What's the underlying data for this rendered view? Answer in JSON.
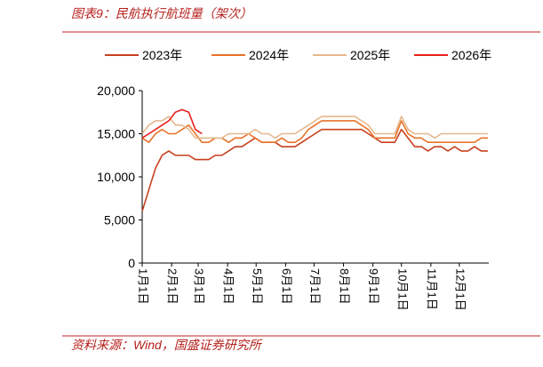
{
  "header": {
    "title": "图表9：民航执行航班量（架次）"
  },
  "chart_data": {
    "type": "line",
    "x": [
      0,
      7,
      14,
      21,
      28,
      35,
      42,
      49,
      56,
      63,
      70,
      77,
      84,
      91,
      98,
      105,
      112,
      119,
      126,
      133,
      140,
      147,
      154,
      161,
      168,
      175,
      182,
      189,
      196,
      203,
      210,
      217,
      224,
      231,
      238,
      245,
      252,
      259,
      266,
      273,
      280,
      287,
      294,
      301,
      308,
      315,
      322,
      329,
      336,
      343,
      350,
      357,
      364
    ],
    "xlim": [
      0,
      365
    ],
    "xticks": [
      {
        "value": 0,
        "label": "1月1日"
      },
      {
        "value": 31,
        "label": "2月1日"
      },
      {
        "value": 59,
        "label": "3月1日"
      },
      {
        "value": 90,
        "label": "4月1日"
      },
      {
        "value": 120,
        "label": "5月1日"
      },
      {
        "value": 151,
        "label": "6月1日"
      },
      {
        "value": 181,
        "label": "7月1日"
      },
      {
        "value": 212,
        "label": "8月1日"
      },
      {
        "value": 243,
        "label": "9月1日"
      },
      {
        "value": 273,
        "label": "10月1日"
      },
      {
        "value": 304,
        "label": "11月1日"
      },
      {
        "value": 334,
        "label": "12月1日"
      }
    ],
    "ylim": [
      0,
      20000
    ],
    "yticks": [
      0,
      {
        "value": 5000,
        "label": "5,000"
      },
      {
        "value": 10000,
        "label": "10,000"
      },
      {
        "value": 15000,
        "label": "15,000"
      },
      {
        "value": 20000,
        "label": "20,000"
      }
    ],
    "series": [
      {
        "name": "2023年",
        "color": "#C8401E",
        "values": [
          6000,
          8500,
          11000,
          12500,
          13000,
          12500,
          12500,
          12500,
          12000,
          12000,
          12000,
          12500,
          12500,
          13000,
          13500,
          13500,
          14000,
          14500,
          14000,
          14000,
          14000,
          13500,
          13500,
          13500,
          14000,
          14500,
          15000,
          15500,
          15500,
          15500,
          15500,
          15500,
          15500,
          15500,
          15000,
          14500,
          14000,
          14000,
          14000,
          15500,
          14500,
          13500,
          13500,
          13000,
          13500,
          13500,
          13000,
          13500,
          13000,
          13000,
          13500,
          13000,
          13000
        ]
      },
      {
        "name": "2024年",
        "color": "#E8732A",
        "values": [
          14500,
          14000,
          15000,
          15500,
          15000,
          15000,
          15500,
          16000,
          15000,
          14000,
          14000,
          14500,
          14500,
          14000,
          14500,
          14500,
          15000,
          14500,
          14000,
          14000,
          14000,
          14500,
          14000,
          14000,
          14500,
          15500,
          16000,
          16500,
          16500,
          16500,
          16500,
          16500,
          16500,
          16000,
          15500,
          14500,
          14500,
          14500,
          14500,
          16500,
          15000,
          14500,
          14500,
          14000,
          14000,
          14000,
          14000,
          14000,
          14000,
          14000,
          14000,
          14500,
          14500
        ]
      },
      {
        "name": "2025年",
        "color": "#E5B88E",
        "values": [
          15000,
          16000,
          16500,
          16500,
          17000,
          16000,
          16000,
          15500,
          14500,
          14500,
          14500,
          14500,
          14500,
          15000,
          15000,
          15000,
          15000,
          15500,
          15000,
          15000,
          14500,
          15000,
          15000,
          15000,
          15500,
          16000,
          16500,
          17000,
          17000,
          17000,
          17000,
          17000,
          17000,
          16500,
          16000,
          15000,
          15000,
          15000,
          15000,
          17000,
          15500,
          15000,
          15000,
          15000,
          14500,
          15000,
          15000,
          15000,
          15000,
          15000,
          15000,
          15000,
          15000
        ]
      },
      {
        "name": "2026年",
        "color": "#E8201C",
        "values": [
          14500,
          15000,
          15500,
          16000,
          16500,
          17500,
          17800,
          17500,
          15500,
          15000,
          null,
          null,
          null,
          null,
          null,
          null,
          null,
          null,
          null,
          null,
          null,
          null,
          null,
          null,
          null,
          null,
          null,
          null,
          null,
          null,
          null,
          null,
          null,
          null,
          null,
          null,
          null,
          null,
          null,
          null,
          null,
          null,
          null,
          null,
          null,
          null,
          null,
          null,
          null,
          null,
          null,
          null,
          null
        ]
      }
    ]
  },
  "footer": {
    "source": "资料来源：Wind，国盛证券研究所"
  }
}
